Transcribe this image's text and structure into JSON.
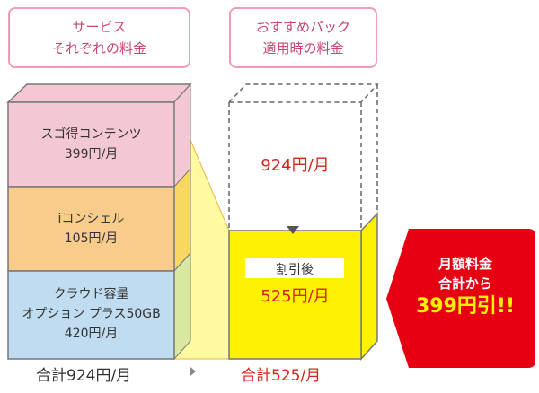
{
  "headers": {
    "left": [
      "サービス",
      "それぞれの料金"
    ],
    "right": [
      "おすすめパック",
      "適用時の料金"
    ]
  },
  "services": [
    {
      "name": "スゴ得コンテンツ",
      "price": "399円/月",
      "color": "#f4c8d2"
    },
    {
      "name": "iコンシェル",
      "price": "105円/月",
      "color": "#f8cc8a"
    },
    {
      "name": "クラウド容量\nオプション プラス50GB",
      "name_lines": [
        "クラウド容量",
        "オプション プラス50GB"
      ],
      "price": "420円/月",
      "color": "#bfdcf0"
    }
  ],
  "pack": {
    "original_price": "924円/月",
    "after_label": "割引後",
    "after_price": "525円/月",
    "color": "#fff200"
  },
  "totals": {
    "before": "合計924円/月",
    "after": "合計525/月"
  },
  "badge": {
    "lines": [
      "月額料金",
      "合計から"
    ],
    "discount": "399円引!!",
    "color": "#e60012",
    "discount_color": "#fff200"
  }
}
